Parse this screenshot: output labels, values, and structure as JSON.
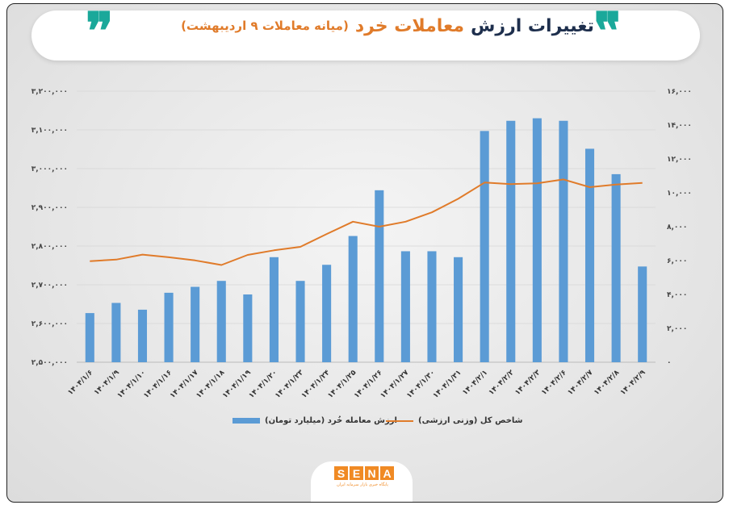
{
  "header": {
    "title_main": "تغییرات ارزش",
    "title_accent": "معاملات خرد",
    "title_paren": "(میانه معاملات ۹ اردیبهشت)"
  },
  "icons": {
    "quote_left": "quote-icon",
    "quote_right": "quote-icon"
  },
  "colors": {
    "bar": "#5b9bd5",
    "line": "#e07b2a",
    "accent": "#e07b2a",
    "teal": "#1aa89a",
    "navy": "#1e2f4d"
  },
  "logo": {
    "letters": [
      "S",
      "E",
      "N",
      "A"
    ],
    "subtitle": "پایگاه خبری بازار سرمایه ایران"
  },
  "chart_data": {
    "type": "bar",
    "categories": [
      "۱۴۰۴/۱/۶",
      "۱۴۰۴/۱/۹",
      "۱۴۰۴/۱/۱۰",
      "۱۴۰۴/۱/۱۶",
      "۱۴۰۴/۱/۱۷",
      "۱۴۰۴/۱/۱۸",
      "۱۴۰۴/۱/۱۹",
      "۱۴۰۴/۱/۲۰",
      "۱۴۰۴/۱/۲۳",
      "۱۴۰۴/۱/۲۴",
      "۱۴۰۴/۱/۲۵",
      "۱۴۰۴/۱/۲۶",
      "۱۴۰۴/۱/۲۷",
      "۱۴۰۴/۱/۳۰",
      "۱۴۰۴/۱/۳۱",
      "۱۴۰۴/۲/۱",
      "۱۴۰۴/۲/۲",
      "۱۴۰۴/۲/۳",
      "۱۴۰۴/۲/۶",
      "۱۴۰۴/۲/۷",
      "۱۴۰۴/۲/۸",
      "۱۴۰۴/۲/۹"
    ],
    "series": [
      {
        "name": "ارزش معامله خُرد (میلیارد تومان)",
        "kind": "bar",
        "axis": "right",
        "values": [
          2900,
          3500,
          3100,
          4100,
          4450,
          4800,
          4000,
          6200,
          4800,
          5750,
          7450,
          10150,
          6550,
          6550,
          6200,
          13650,
          14250,
          14400,
          14250,
          12600,
          11100,
          5650
        ]
      },
      {
        "name": "شاخص کل (وزنی ارزشی)",
        "kind": "line",
        "axis": "left",
        "values": [
          2761000,
          2765000,
          2778000,
          2771000,
          2763000,
          2751000,
          2777000,
          2789000,
          2798000,
          2831000,
          2863000,
          2850000,
          2863000,
          2887000,
          2922000,
          2964000,
          2960000,
          2962000,
          2972000,
          2952000,
          2959000,
          2963000
        ]
      }
    ],
    "y_left": {
      "min": 2500000,
      "max": 3200000,
      "ticks": [
        "۲,۵۰۰,۰۰۰",
        "۲,۶۰۰,۰۰۰",
        "۲,۷۰۰,۰۰۰",
        "۲,۸۰۰,۰۰۰",
        "۲,۹۰۰,۰۰۰",
        "۳,۰۰۰,۰۰۰",
        "۳,۱۰۰,۰۰۰",
        "۳,۲۰۰,۰۰۰"
      ]
    },
    "y_right": {
      "min": 0,
      "max": 16000,
      "ticks": [
        "۰",
        "۲,۰۰۰",
        "۴,۰۰۰",
        "۶,۰۰۰",
        "۸,۰۰۰",
        "۱۰,۰۰۰",
        "۱۲,۰۰۰",
        "۱۴,۰۰۰",
        "۱۶,۰۰۰"
      ]
    },
    "grid": true,
    "legend": "bottom-center"
  }
}
